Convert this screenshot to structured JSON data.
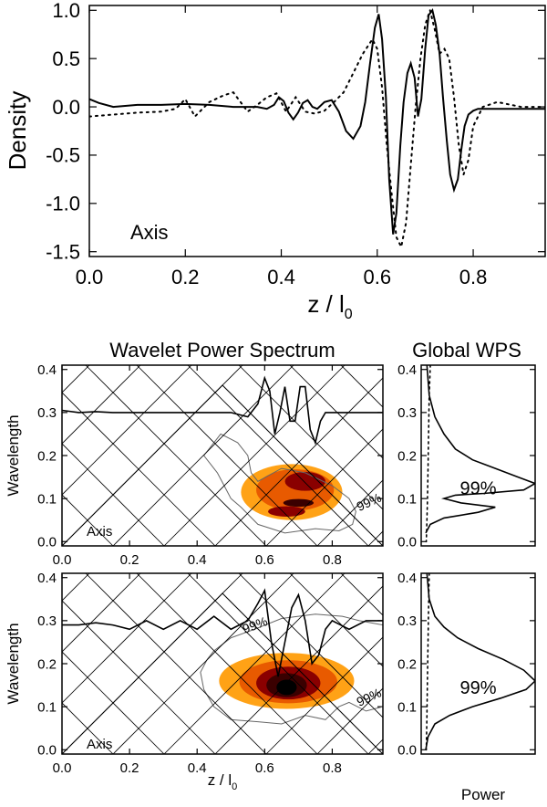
{
  "chart_data": [
    {
      "id": "density",
      "type": "line",
      "title": "",
      "xlabel": "z / l",
      "xlabel_sub": "0",
      "ylabel": "Density",
      "annotation": "Axis",
      "xlim": [
        0.0,
        0.95
      ],
      "ylim": [
        -1.55,
        1.05
      ],
      "xticks": [
        0.0,
        0.2,
        0.4,
        0.6,
        0.8
      ],
      "xtick_labels": [
        "0.0",
        "0.2",
        "0.4",
        "0.6",
        "0.8"
      ],
      "yticks": [
        1.0,
        0.5,
        0.0,
        -0.5,
        -1.0,
        -1.5
      ],
      "ytick_labels": [
        "1.0",
        "0.5",
        "0.0",
        "-0.5",
        "-1.0",
        "-1.5"
      ],
      "series": [
        {
          "name": "solid",
          "style": "solid",
          "x": [
            0.0,
            0.02,
            0.05,
            0.1,
            0.15,
            0.2,
            0.25,
            0.3,
            0.35,
            0.37,
            0.385,
            0.395,
            0.405,
            0.415,
            0.425,
            0.435,
            0.445,
            0.455,
            0.465,
            0.475,
            0.49,
            0.505,
            0.52,
            0.535,
            0.55,
            0.565,
            0.575,
            0.585,
            0.595,
            0.603,
            0.61,
            0.618,
            0.625,
            0.633,
            0.64,
            0.648,
            0.655,
            0.663,
            0.67,
            0.678,
            0.685,
            0.692,
            0.7,
            0.707,
            0.715,
            0.722,
            0.73,
            0.737,
            0.745,
            0.752,
            0.76,
            0.768,
            0.775,
            0.782,
            0.79,
            0.8,
            0.81,
            0.82,
            0.84,
            0.86,
            0.9,
            0.95
          ],
          "y": [
            0.08,
            0.04,
            0.0,
            0.02,
            0.02,
            0.03,
            0.02,
            0.0,
            0.0,
            -0.02,
            0.02,
            0.1,
            0.06,
            -0.06,
            -0.13,
            -0.06,
            0.04,
            0.07,
            0.0,
            -0.02,
            0.05,
            0.07,
            -0.05,
            -0.25,
            -0.33,
            -0.2,
            0.05,
            0.45,
            0.82,
            0.96,
            0.7,
            0.1,
            -0.75,
            -1.32,
            -1.1,
            -0.4,
            0.05,
            0.35,
            0.45,
            0.3,
            -0.1,
            0.08,
            0.6,
            0.95,
            1.0,
            0.85,
            0.55,
            0.1,
            -0.35,
            -0.7,
            -0.86,
            -0.75,
            -0.45,
            -0.2,
            -0.08,
            -0.04,
            -0.02,
            -0.02,
            -0.02,
            -0.02,
            -0.02,
            -0.02
          ]
        },
        {
          "name": "dotted",
          "style": "dotted",
          "x": [
            0.0,
            0.05,
            0.1,
            0.15,
            0.18,
            0.2,
            0.22,
            0.25,
            0.28,
            0.3,
            0.33,
            0.35,
            0.37,
            0.39,
            0.41,
            0.43,
            0.45,
            0.47,
            0.49,
            0.51,
            0.53,
            0.55,
            0.57,
            0.59,
            0.6,
            0.61,
            0.62,
            0.63,
            0.64,
            0.65,
            0.66,
            0.67,
            0.68,
            0.69,
            0.7,
            0.71,
            0.72,
            0.73,
            0.74,
            0.75,
            0.76,
            0.77,
            0.78,
            0.79,
            0.8,
            0.82,
            0.85,
            0.9,
            0.95
          ],
          "y": [
            -0.1,
            -0.08,
            -0.06,
            -0.05,
            -0.02,
            0.08,
            -0.1,
            0.05,
            0.12,
            0.15,
            -0.05,
            0.02,
            0.1,
            0.14,
            -0.05,
            0.1,
            -0.05,
            -0.07,
            -0.04,
            0.05,
            0.15,
            0.35,
            0.55,
            0.7,
            0.6,
            0.2,
            -0.4,
            -0.9,
            -1.35,
            -1.45,
            -1.2,
            -0.6,
            0.0,
            0.5,
            0.85,
            1.0,
            0.8,
            0.55,
            0.6,
            0.5,
            0.1,
            -0.4,
            -0.7,
            -0.55,
            -0.2,
            0.0,
            0.05,
            0.0,
            0.0
          ]
        }
      ]
    },
    {
      "id": "wps-1",
      "type": "heatmap",
      "title": "Wavelet Power Spectrum",
      "xlabel": "",
      "ylabel": "Wavelength",
      "annotation": "Axis",
      "xlim": [
        0.0,
        0.95
      ],
      "ylim": [
        -0.01,
        0.41
      ],
      "xticks": [
        0.0,
        0.2,
        0.4,
        0.6,
        0.8
      ],
      "xtick_labels": [
        "0.0",
        "0.2",
        "0.4",
        "0.6",
        "0.8"
      ],
      "yticks": [
        0.0,
        0.1,
        0.2,
        0.3,
        0.4
      ],
      "ytick_labels": [
        "0.0",
        "0.1",
        "0.2",
        "0.3",
        "0.4"
      ],
      "contour_label": "99%",
      "colors": [
        "#ffa216",
        "#e85a00",
        "#8a0000",
        "#3a0000",
        "#ffffff"
      ],
      "blobs": [
        {
          "level": 1,
          "cx": 0.68,
          "cy": 0.115,
          "rx": 0.15,
          "ry": 0.065
        },
        {
          "level": 2,
          "cx": 0.69,
          "cy": 0.12,
          "rx": 0.115,
          "ry": 0.048
        },
        {
          "level": 3,
          "cx": 0.72,
          "cy": 0.14,
          "rx": 0.06,
          "ry": 0.022
        },
        {
          "level": 3,
          "cx": 0.665,
          "cy": 0.07,
          "rx": 0.055,
          "ry": 0.012
        },
        {
          "level": 4,
          "cx": 0.7,
          "cy": 0.09,
          "rx": 0.045,
          "ry": 0.009
        }
      ],
      "signal": {
        "x": [
          0.0,
          0.05,
          0.1,
          0.15,
          0.2,
          0.25,
          0.3,
          0.35,
          0.4,
          0.5,
          0.55,
          0.58,
          0.6,
          0.615,
          0.63,
          0.645,
          0.66,
          0.675,
          0.69,
          0.705,
          0.72,
          0.735,
          0.75,
          0.765,
          0.78,
          0.8,
          0.85,
          0.9,
          0.95
        ],
        "y": [
          0.305,
          0.3,
          0.302,
          0.3,
          0.3,
          0.3,
          0.3,
          0.3,
          0.3,
          0.3,
          0.29,
          0.32,
          0.38,
          0.35,
          0.25,
          0.3,
          0.36,
          0.28,
          0.28,
          0.36,
          0.36,
          0.26,
          0.23,
          0.28,
          0.3,
          0.3,
          0.3,
          0.3,
          0.3
        ]
      },
      "significance": {
        "x": [
          0.42,
          0.47,
          0.52,
          0.55,
          0.56,
          0.58,
          0.65,
          0.72,
          0.8,
          0.85,
          0.87,
          0.86,
          0.82,
          0.75,
          0.66,
          0.58,
          0.53,
          0.5,
          0.48,
          0.46,
          0.44,
          0.42
        ],
        "y": [
          0.2,
          0.25,
          0.23,
          0.2,
          0.16,
          0.14,
          0.17,
          0.16,
          0.13,
          0.1,
          0.07,
          0.04,
          0.025,
          0.03,
          0.02,
          0.04,
          0.08,
          0.1,
          0.13,
          0.16,
          0.18,
          0.2
        ]
      },
      "label_at": [
        0.88,
        0.07
      ]
    },
    {
      "id": "wps-2",
      "type": "heatmap",
      "title": "",
      "xlabel": "z / l",
      "xlabel_sub": "0",
      "ylabel": "Wavelength",
      "annotation": "Axis",
      "xlim": [
        0.0,
        0.95
      ],
      "ylim": [
        -0.01,
        0.41
      ],
      "xticks": [
        0.0,
        0.2,
        0.4,
        0.6,
        0.8
      ],
      "xtick_labels": [
        "0.0",
        "0.2",
        "0.4",
        "0.6",
        "0.8"
      ],
      "yticks": [
        0.0,
        0.1,
        0.2,
        0.3,
        0.4
      ],
      "ytick_labels": [
        "0.0",
        "0.1",
        "0.2",
        "0.3",
        "0.4"
      ],
      "contour_label": "99%",
      "colors": [
        "#ffa216",
        "#e85a00",
        "#8a0000",
        "#3a0000",
        "#000000"
      ],
      "blobs": [
        {
          "level": 1,
          "cx": 0.665,
          "cy": 0.16,
          "rx": 0.2,
          "ry": 0.065
        },
        {
          "level": 2,
          "cx": 0.67,
          "cy": 0.158,
          "rx": 0.145,
          "ry": 0.05
        },
        {
          "level": 3,
          "cx": 0.67,
          "cy": 0.155,
          "rx": 0.095,
          "ry": 0.038
        },
        {
          "level": 4,
          "cx": 0.665,
          "cy": 0.15,
          "rx": 0.06,
          "ry": 0.028
        },
        {
          "level": 5,
          "cx": 0.665,
          "cy": 0.145,
          "rx": 0.03,
          "ry": 0.018
        }
      ],
      "signal": {
        "x": [
          0.0,
          0.05,
          0.1,
          0.15,
          0.2,
          0.25,
          0.3,
          0.35,
          0.4,
          0.45,
          0.5,
          0.55,
          0.58,
          0.6,
          0.62,
          0.64,
          0.66,
          0.68,
          0.7,
          0.72,
          0.74,
          0.76,
          0.78,
          0.8,
          0.85,
          0.9,
          0.95
        ],
        "y": [
          0.29,
          0.29,
          0.295,
          0.29,
          0.28,
          0.3,
          0.28,
          0.3,
          0.28,
          0.31,
          0.28,
          0.3,
          0.34,
          0.37,
          0.25,
          0.17,
          0.25,
          0.33,
          0.36,
          0.3,
          0.2,
          0.22,
          0.28,
          0.3,
          0.28,
          0.3,
          0.3
        ]
      },
      "significance": {
        "x": [
          0.45,
          0.5,
          0.57,
          0.65,
          0.75,
          0.83,
          0.88,
          0.95,
          0.95,
          0.9,
          0.85,
          0.82,
          0.78,
          0.72,
          0.65,
          0.58,
          0.5,
          0.45,
          0.42,
          0.41,
          0.43,
          0.45
        ],
        "y": [
          0.23,
          0.26,
          0.28,
          0.305,
          0.315,
          0.31,
          0.3,
          0.29,
          0.1,
          0.09,
          0.11,
          0.1,
          0.07,
          0.08,
          0.06,
          0.065,
          0.07,
          0.1,
          0.14,
          0.18,
          0.21,
          0.23
        ]
      },
      "label_at": [
        0.88,
        0.1
      ],
      "label2_at": [
        0.54,
        0.27
      ]
    },
    {
      "id": "gwps-1",
      "type": "line",
      "title": "Global WPS",
      "xlabel": "",
      "ylabel": "",
      "ylim": [
        -0.01,
        0.41
      ],
      "yticks": [
        0.0,
        0.1,
        0.2,
        0.3,
        0.4
      ],
      "ytick_labels": [
        "0.0",
        "0.1",
        "0.2",
        "0.3",
        "0.4"
      ],
      "xlim": [
        0,
        1
      ],
      "annotation": "99%",
      "series": [
        {
          "name": "power",
          "style": "solid",
          "x": [
            0.05,
            0.07,
            0.12,
            0.2,
            0.3,
            0.45,
            0.65,
            0.85,
            1.0,
            0.9,
            0.55,
            0.3,
            0.2,
            0.35,
            0.65,
            0.5,
            0.2,
            0.08,
            0.04
          ],
          "y": [
            0.41,
            0.34,
            0.29,
            0.25,
            0.215,
            0.19,
            0.17,
            0.15,
            0.135,
            0.12,
            0.112,
            0.108,
            0.1,
            0.09,
            0.08,
            0.068,
            0.055,
            0.04,
            0.02
          ]
        },
        {
          "name": "significance",
          "style": "dotted",
          "x": [
            0.08,
            0.07,
            0.065,
            0.06,
            0.055,
            0.05,
            0.045
          ],
          "y": [
            0.41,
            0.34,
            0.25,
            0.17,
            0.1,
            0.05,
            0.0
          ]
        }
      ],
      "label_at": [
        0.5,
        0.11
      ]
    },
    {
      "id": "gwps-2",
      "type": "line",
      "title": "",
      "xlabel": "Power",
      "ylabel": "",
      "ylim": [
        -0.01,
        0.41
      ],
      "yticks": [
        0.0,
        0.1,
        0.2,
        0.3,
        0.4
      ],
      "ytick_labels": [
        "0.0",
        "0.1",
        "0.2",
        "0.3",
        "0.4"
      ],
      "xlim": [
        0,
        1
      ],
      "annotation": "99%",
      "series": [
        {
          "name": "power",
          "style": "solid",
          "x": [
            0.05,
            0.07,
            0.12,
            0.2,
            0.32,
            0.5,
            0.72,
            0.9,
            1.0,
            0.92,
            0.7,
            0.45,
            0.25,
            0.12,
            0.06,
            0.04
          ],
          "y": [
            0.41,
            0.35,
            0.31,
            0.285,
            0.26,
            0.235,
            0.21,
            0.185,
            0.16,
            0.14,
            0.12,
            0.1,
            0.08,
            0.06,
            0.03,
            0.0
          ]
        },
        {
          "name": "significance",
          "style": "dotted",
          "x": [
            0.07,
            0.065,
            0.06,
            0.055,
            0.05,
            0.045
          ],
          "y": [
            0.41,
            0.33,
            0.25,
            0.17,
            0.08,
            0.0
          ]
        }
      ],
      "label_at": [
        0.5,
        0.13
      ]
    }
  ]
}
